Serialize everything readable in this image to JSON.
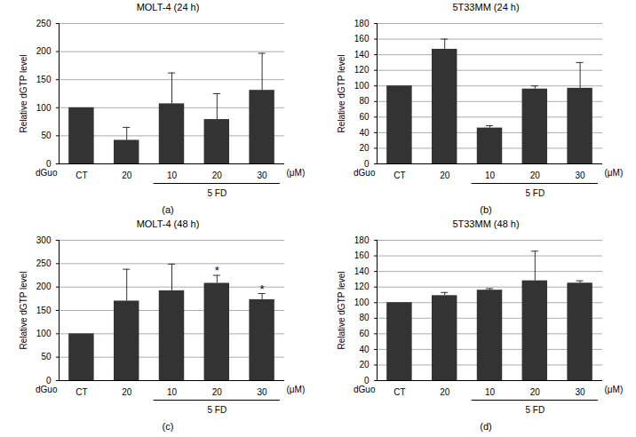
{
  "chart_data": [
    {
      "type": "bar",
      "title": "MOLT-4 (24 h)",
      "caption": "(a)",
      "y_label": "Relative dGTP level",
      "row_label": "dGuo",
      "unit_label": "(μM)",
      "categories": [
        "CT",
        "20",
        "10",
        "20",
        "30"
      ],
      "values": [
        100,
        42,
        107,
        79,
        131
      ],
      "errors": [
        0,
        23,
        55,
        46,
        66
      ],
      "groups": [
        {
          "label": "5 FD",
          "from": 2,
          "to": 4
        }
      ],
      "color": "#333333",
      "ylim": [
        0,
        250
      ],
      "yticks": [
        0,
        50,
        100,
        150,
        200,
        250
      ],
      "grid": true
    },
    {
      "type": "bar",
      "title": "5T33MM (24 h)",
      "caption": "(b)",
      "y_label": "Relative dGTP level",
      "row_label": "dGuo",
      "unit_label": "(μM)",
      "categories": [
        "CT",
        "20",
        "10",
        "20",
        "30"
      ],
      "values": [
        100,
        147,
        46,
        96,
        97
      ],
      "errors": [
        0,
        13,
        3,
        4,
        33
      ],
      "groups": [
        {
          "label": "5 FD",
          "from": 2,
          "to": 4
        }
      ],
      "color": "#333333",
      "ylim": [
        0,
        180
      ],
      "yticks": [
        0,
        20,
        40,
        60,
        80,
        100,
        120,
        140,
        160,
        180
      ],
      "grid": true
    },
    {
      "type": "bar",
      "title": "MOLT-4 (48 h)",
      "caption": "(c)",
      "y_label": "Relative dGTP level",
      "row_label": "dGuo",
      "unit_label": "(μM)",
      "categories": [
        "CT",
        "20",
        "10",
        "20",
        "30"
      ],
      "values": [
        100,
        170,
        192,
        208,
        173
      ],
      "errors": [
        0,
        68,
        57,
        17,
        13
      ],
      "groups": [
        {
          "label": "5 FD",
          "from": 2,
          "to": 4
        }
      ],
      "annotations": [
        {
          "category_index": 3,
          "text": "*"
        },
        {
          "category_index": 4,
          "text": "*"
        }
      ],
      "color": "#333333",
      "ylim": [
        0,
        300
      ],
      "yticks": [
        0,
        50,
        100,
        150,
        200,
        250,
        300
      ],
      "grid": true
    },
    {
      "type": "bar",
      "title": "5T33MM (48 h)",
      "caption": "(d)",
      "y_label": "Relative dGTP level",
      "row_label": "dGuo",
      "unit_label": "(μM)",
      "categories": [
        "CT",
        "20",
        "10",
        "20",
        "30"
      ],
      "values": [
        100,
        109,
        116,
        128,
        125
      ],
      "errors": [
        0,
        4,
        2,
        38,
        3
      ],
      "groups": [
        {
          "label": "5 FD",
          "from": 2,
          "to": 4
        }
      ],
      "color": "#333333",
      "ylim": [
        0,
        180
      ],
      "yticks": [
        0,
        20,
        40,
        60,
        80,
        100,
        120,
        140,
        160,
        180
      ],
      "grid": true
    }
  ]
}
